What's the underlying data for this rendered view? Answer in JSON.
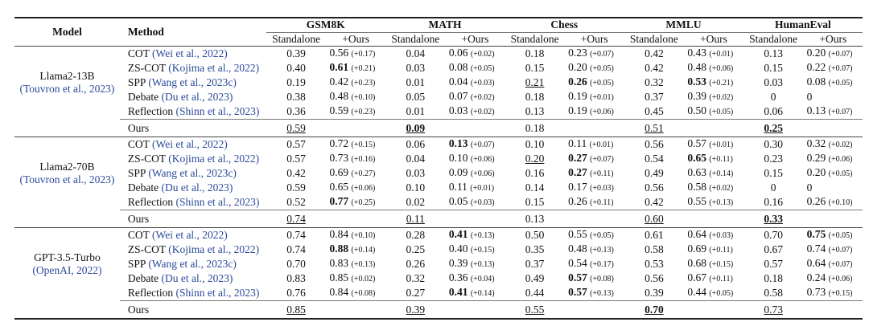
{
  "header": {
    "model": "Model",
    "method": "Method",
    "benchmarks": [
      "GSM8K",
      "MATH",
      "Chess",
      "MMLU",
      "HumanEval"
    ],
    "sub": [
      "Standalone",
      "+Ours"
    ]
  },
  "groups": [
    {
      "model": "Llama2-13B",
      "model_cite": "(Touvron et al., 2023)",
      "rows": [
        {
          "method": "COT",
          "cite": "(Wei et al., 2022)",
          "cells": [
            "0.39",
            {
              "text": "0.56",
              "delta": "(+0.17)"
            },
            "0.04",
            {
              "text": "0.06",
              "delta": "(+0.02)"
            },
            "0.18",
            {
              "text": "0.23",
              "delta": "(+0.07)"
            },
            "0.42",
            {
              "text": "0.43",
              "delta": "(+0.01)"
            },
            "0.13",
            {
              "text": "0.20",
              "delta": "(+0.07)"
            }
          ]
        },
        {
          "method": "ZS-COT",
          "cite": "(Kojima et al., 2022)",
          "cells": [
            "0.40",
            {
              "text": "0.61",
              "delta": "(+0.21)",
              "bold": true
            },
            "0.03",
            {
              "text": "0.08",
              "delta": "(+0.05)"
            },
            "0.15",
            {
              "text": "0.20",
              "delta": "(+0.05)"
            },
            "0.42",
            {
              "text": "0.48",
              "delta": "(+0.06)"
            },
            "0.15",
            {
              "text": "0.22",
              "delta": "(+0.07)"
            }
          ]
        },
        {
          "method": "SPP",
          "cite": "(Wang et al., 2023c)",
          "cells": [
            "0.19",
            {
              "text": "0.42",
              "delta": "(+0.23)"
            },
            "0.01",
            {
              "text": "0.04",
              "delta": "(+0.03)"
            },
            {
              "text": "0.21",
              "underline": true
            },
            {
              "text": "0.26",
              "delta": "(+0.05)",
              "bold": true
            },
            "0.32",
            {
              "text": "0.53",
              "delta": "(+0.21)",
              "bold": true
            },
            "0.03",
            {
              "text": "0.08",
              "delta": "(+0.05)"
            }
          ]
        },
        {
          "method": "Debate",
          "cite": "(Du et al., 2023)",
          "cells": [
            "0.38",
            {
              "text": "0.48",
              "delta": "(+0.10)"
            },
            "0.05",
            {
              "text": "0.07",
              "delta": "(+0.02)"
            },
            "0.18",
            {
              "text": "0.19",
              "delta": "(+0.01)"
            },
            "0.37",
            {
              "text": "0.39",
              "delta": "(+0.02)"
            },
            "0",
            {
              "text": "0"
            }
          ]
        },
        {
          "method": "Reflection",
          "cite": "(Shinn et al., 2023)",
          "cells": [
            "0.36",
            {
              "text": "0.59",
              "delta": "(+0.23)"
            },
            "0.01",
            {
              "text": "0.03",
              "delta": "(+0.02)"
            },
            "0.13",
            {
              "text": "0.19",
              "delta": "(+0.06)"
            },
            "0.45",
            {
              "text": "0.50",
              "delta": "(+0.05)"
            },
            "0.06",
            {
              "text": "0.13",
              "delta": "(+0.07)"
            }
          ]
        }
      ],
      "ours": {
        "method": "Ours",
        "cells": [
          {
            "text": "0.59",
            "underline": true
          },
          {
            "text": "0.09",
            "bold": true,
            "underline": true
          },
          {
            "text": "0.18"
          },
          {
            "text": "0.51",
            "underline": true
          },
          {
            "text": "0.25",
            "bold": true,
            "underline": true
          }
        ]
      }
    },
    {
      "model": "Llama2-70B",
      "model_cite": "(Touvron et al., 2023)",
      "rows": [
        {
          "method": "COT",
          "cite": "(Wei et al., 2022)",
          "cells": [
            "0.57",
            {
              "text": "0.72",
              "delta": "(+0.15)"
            },
            "0.06",
            {
              "text": "0.13",
              "delta": "(+0.07)",
              "bold": true
            },
            "0.10",
            {
              "text": "0.11",
              "delta": "(+0.01)"
            },
            "0.56",
            {
              "text": "0.57",
              "delta": "(+0.01)"
            },
            "0.30",
            {
              "text": "0.32",
              "delta": "(+0.02)"
            }
          ]
        },
        {
          "method": "ZS-COT",
          "cite": "(Kojima et al., 2022)",
          "cells": [
            "0.57",
            {
              "text": "0.73",
              "delta": "(+0.16)"
            },
            "0.04",
            {
              "text": "0.10",
              "delta": "(+0.06)"
            },
            {
              "text": "0.20",
              "underline": true
            },
            {
              "text": "0.27",
              "delta": "(+0.07)",
              "bold": true
            },
            "0.54",
            {
              "text": "0.65",
              "delta": "(+0.11)",
              "bold": true
            },
            "0.23",
            {
              "text": "0.29",
              "delta": "(+0.06)"
            }
          ]
        },
        {
          "method": "SPP",
          "cite": "(Wang et al., 2023c)",
          "cells": [
            "0.42",
            {
              "text": "0.69",
              "delta": "(+0.27)"
            },
            "0.03",
            {
              "text": "0.09",
              "delta": "(+0.06)"
            },
            "0.16",
            {
              "text": "0.27",
              "delta": "(+0.11)",
              "bold": true
            },
            "0.49",
            {
              "text": "0.63",
              "delta": "(+0.14)"
            },
            "0.15",
            {
              "text": "0.20",
              "delta": "(+0.05)"
            }
          ]
        },
        {
          "method": "Debate",
          "cite": "(Du et al., 2023)",
          "cells": [
            "0.59",
            {
              "text": "0.65",
              "delta": "(+0.06)"
            },
            "0.10",
            {
              "text": "0.11",
              "delta": "(+0.01)"
            },
            "0.14",
            {
              "text": "0.17",
              "delta": "(+0.03)"
            },
            "0.56",
            {
              "text": "0.58",
              "delta": "(+0.02)"
            },
            "0",
            {
              "text": "0"
            }
          ]
        },
        {
          "method": "Reflection",
          "cite": "(Shinn et al., 2023)",
          "cells": [
            "0.52",
            {
              "text": "0.77",
              "delta": "(+0.25)",
              "bold": true
            },
            "0.02",
            {
              "text": "0.05",
              "delta": "(+0.03)"
            },
            "0.15",
            {
              "text": "0.26",
              "delta": "(+0.11)"
            },
            "0.42",
            {
              "text": "0.55",
              "delta": "(+0.13)"
            },
            "0.16",
            {
              "text": "0.26",
              "delta": "(+0.10)"
            }
          ]
        }
      ],
      "ours": {
        "method": "Ours",
        "cells": [
          {
            "text": "0.74",
            "underline": true
          },
          {
            "text": "0.11",
            "underline": true
          },
          {
            "text": "0.13"
          },
          {
            "text": "0.60",
            "underline": true
          },
          {
            "text": "0.33",
            "bold": true,
            "underline": true
          }
        ]
      }
    },
    {
      "model": "GPT-3.5-Turbo",
      "model_cite": "(OpenAI, 2022)",
      "rows": [
        {
          "method": "COT",
          "cite": "(Wei et al., 2022)",
          "cells": [
            "0.74",
            {
              "text": "0.84",
              "delta": "(+0.10)"
            },
            "0.28",
            {
              "text": "0.41",
              "delta": "(+0.13)",
              "bold": true
            },
            "0.50",
            {
              "text": "0.55",
              "delta": "(+0.05)"
            },
            "0.61",
            {
              "text": "0.64",
              "delta": "(+0.03)"
            },
            "0.70",
            {
              "text": "0.75",
              "delta": "(+0.05)",
              "bold": true
            }
          ]
        },
        {
          "method": "ZS-COT",
          "cite": "(Kojima et al., 2022)",
          "cells": [
            "0.74",
            {
              "text": "0.88",
              "delta": "(+0.14)",
              "bold": true
            },
            "0.25",
            {
              "text": "0.40",
              "delta": "(+0.15)"
            },
            "0.35",
            {
              "text": "0.48",
              "delta": "(+0.13)"
            },
            "0.58",
            {
              "text": "0.69",
              "delta": "(+0.11)"
            },
            "0.67",
            {
              "text": "0.74",
              "delta": "(+0.07)"
            }
          ]
        },
        {
          "method": "SPP",
          "cite": "(Wang et al., 2023c)",
          "cells": [
            "0.70",
            {
              "text": "0.83",
              "delta": "(+0.13)"
            },
            "0.26",
            {
              "text": "0.39",
              "delta": "(+0.13)"
            },
            "0.37",
            {
              "text": "0.54",
              "delta": "(+0.17)"
            },
            "0.53",
            {
              "text": "0.68",
              "delta": "(+0.15)"
            },
            "0.57",
            {
              "text": "0.64",
              "delta": "(+0.07)"
            }
          ]
        },
        {
          "method": "Debate",
          "cite": "(Du et al., 2023)",
          "cells": [
            "0.83",
            {
              "text": "0.85",
              "delta": "(+0.02)"
            },
            "0.32",
            {
              "text": "0.36",
              "delta": "(+0.04)"
            },
            "0.49",
            {
              "text": "0.57",
              "delta": "(+0.08)",
              "bold": true
            },
            "0.56",
            {
              "text": "0.67",
              "delta": "(+0.11)"
            },
            "0.18",
            {
              "text": "0.24",
              "delta": "(+0.06)"
            }
          ]
        },
        {
          "method": "Reflection",
          "cite": "(Shinn et al., 2023)",
          "cells": [
            "0.76",
            {
              "text": "0.84",
              "delta": "(+0.08)"
            },
            "0.27",
            {
              "text": "0.41",
              "delta": "(+0.14)",
              "bold": true
            },
            "0.44",
            {
              "text": "0.57",
              "delta": "(+0.13)",
              "bold": true
            },
            "0.39",
            {
              "text": "0.44",
              "delta": "(+0.05)"
            },
            "0.58",
            {
              "text": "0.73",
              "delta": "(+0.15)"
            }
          ]
        }
      ],
      "ours": {
        "method": "Ours",
        "cells": [
          {
            "text": "0.85",
            "underline": true
          },
          {
            "text": "0.39",
            "underline": true
          },
          {
            "text": "0.55",
            "underline": true
          },
          {
            "text": "0.70",
            "bold": true,
            "underline": true
          },
          {
            "text": "0.73",
            "underline": true
          }
        ]
      }
    }
  ]
}
